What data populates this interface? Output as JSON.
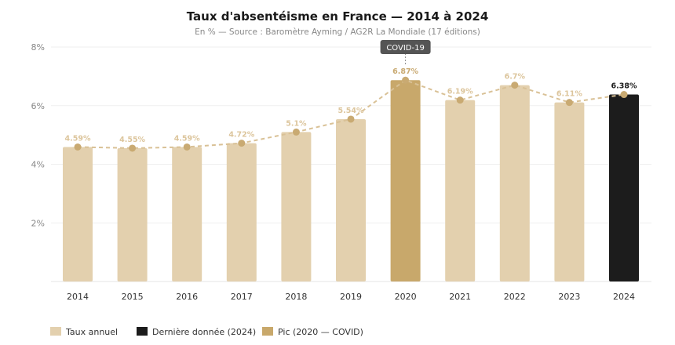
{
  "chart_data": {
    "type": "bar",
    "title": "Taux d'absentéisme en France — 2014 à 2024",
    "subtitle": "En % — Source : Baromètre Ayming / AG2R La Mondiale (17 éditions)",
    "categories": [
      "2014",
      "2015",
      "2016",
      "2017",
      "2018",
      "2019",
      "2020",
      "2021",
      "2022",
      "2023",
      "2024"
    ],
    "values": [
      4.59,
      4.55,
      4.59,
      4.72,
      5.1,
      5.54,
      6.87,
      6.19,
      6.7,
      6.11,
      6.38
    ],
    "value_labels": [
      "4.59%",
      "4.55%",
      "4.59%",
      "4.72%",
      "5.1%",
      "5.54%",
      "6.87%",
      "6.19%",
      "6.7%",
      "6.11%",
      "6.38%"
    ],
    "overlay_line": "dashed line with markers through the same values",
    "ylim": [
      0,
      8
    ],
    "yticks": [
      2,
      4,
      6,
      8
    ],
    "ytick_labels": [
      "2%",
      "4%",
      "6%",
      "8%"
    ],
    "grid": true,
    "annotation": {
      "text": "COVID-19",
      "category": "2020"
    },
    "legend_position": "bottom-left",
    "legend": [
      {
        "label": "Taux annuel",
        "color": "#e3d0ae"
      },
      {
        "label": "Dernière donnée (2024)",
        "color": "#1c1c1c"
      },
      {
        "label": "Pic (2020 — COVID)",
        "color": "#c8a86b"
      }
    ],
    "colors": {
      "bar": "#e3d0ae",
      "peak": "#c8a86b",
      "latest": "#1c1c1c",
      "line": "#d9c196",
      "marker": "#c9aa72",
      "label": "#dcc59c",
      "grid": "#efefef"
    }
  }
}
